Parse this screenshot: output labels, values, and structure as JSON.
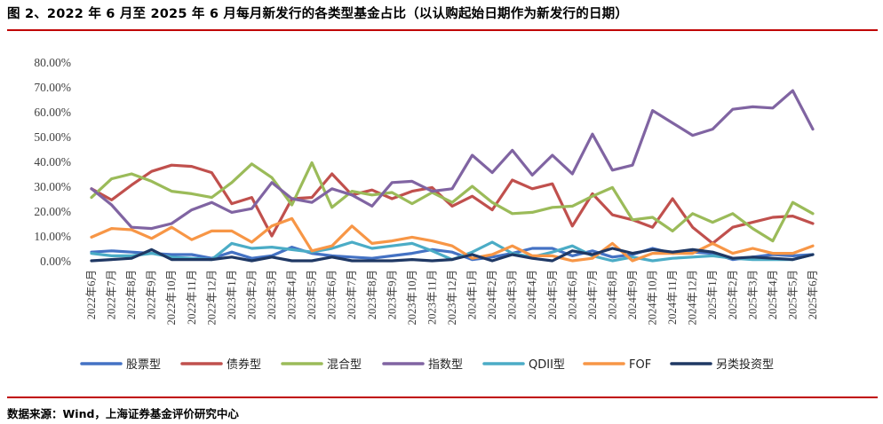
{
  "title": "图 2、2022 年 6 月至 2025 年 6 月每月新发行的各类型基金占比（以认购起始日期作为新发行的日期）",
  "source": "数据来源：Wind，上海证券基金评价研究中心",
  "colors": {
    "rule": "#c00000"
  },
  "chart_data": {
    "type": "line",
    "title": "2022 年 6 月至 2025 年 6 月每月新发行的各类型基金占比（以认购起始日期作为新发行的日期）",
    "ylim": [
      0,
      80
    ],
    "ytick_values": [
      0,
      10,
      20,
      30,
      40,
      50,
      60,
      70,
      80
    ],
    "ytick_labels": [
      "0.00%",
      "10.00%",
      "20.00%",
      "30.00%",
      "40.00%",
      "50.00%",
      "60.00%",
      "70.00%",
      "80.00%"
    ],
    "grid": false,
    "legend_position": "bottom",
    "categories": [
      "2022年6月",
      "2022年7月",
      "2022年8月",
      "2022年9月",
      "2022年10月",
      "2022年11月",
      "2022年12月",
      "2023年1月",
      "2023年2月",
      "2023年3月",
      "2023年4月",
      "2023年5月",
      "2023年6月",
      "2023年7月",
      "2023年8月",
      "2023年9月",
      "2023年10月",
      "2023年11月",
      "2023年12月",
      "2024年1月",
      "2024年2月",
      "2024年3月",
      "2024年4月",
      "2024年5月",
      "2024年6月",
      "2024年7月",
      "2024年8月",
      "2024年9月",
      "2024年10月",
      "2024年11月",
      "2024年12月",
      "2025年1月",
      "2025年2月",
      "2025年3月",
      "2025年4月",
      "2025年5月",
      "2025年6月"
    ],
    "series": [
      {
        "name": "股票型",
        "color": "#4472c4",
        "values": [
          3.5,
          4,
          3.5,
          3,
          2.5,
          2.5,
          1,
          3.5,
          1,
          2,
          5.5,
          3,
          2,
          1.5,
          1,
          2,
          3,
          4.5,
          3.5,
          0.5,
          1.5,
          3,
          5,
          5,
          2,
          4,
          1.5,
          2.5,
          5,
          3,
          3.5,
          3,
          0.5,
          1.5,
          2.5,
          2,
          2.5
        ]
      },
      {
        "name": "债券型",
        "color": "#c0504d",
        "values": [
          29,
          24.5,
          30.5,
          36,
          38.5,
          38,
          35.5,
          23,
          25.5,
          10,
          25,
          25.5,
          35,
          26.5,
          28.5,
          25,
          28,
          29.5,
          22,
          26,
          20.5,
          32.5,
          29,
          31,
          14,
          27,
          18.5,
          16.5,
          13.5,
          25,
          13.5,
          7,
          13.5,
          15.5,
          17.5,
          18,
          15
        ]
      },
      {
        "name": "混合型",
        "color": "#9bbb59",
        "values": [
          25.5,
          33,
          35,
          32,
          28,
          27,
          25.5,
          31.5,
          39,
          33.5,
          22.5,
          39.5,
          21.5,
          28,
          26.5,
          27.5,
          23,
          27.5,
          23.5,
          30,
          23.5,
          19,
          19.5,
          21.5,
          22,
          26,
          29.5,
          16.5,
          17.5,
          12,
          19,
          15.5,
          19,
          13,
          8,
          23.5,
          19
        ]
      },
      {
        "name": "指数型",
        "color": "#8064a2",
        "values": [
          29,
          22.5,
          13.5,
          13,
          15,
          20.5,
          23.5,
          19.5,
          21,
          31.5,
          25,
          23.5,
          29,
          26.5,
          22,
          31.5,
          32,
          28,
          29,
          42.5,
          35.5,
          44.5,
          34.5,
          42.5,
          35,
          51,
          36.5,
          38.5,
          60.5,
          55.5,
          50.5,
          53,
          61,
          62,
          61.5,
          68.5,
          53
        ]
      },
      {
        "name": "QDII型",
        "color": "#4bacc6",
        "values": [
          3,
          2,
          2,
          3,
          1.5,
          1,
          0.5,
          7,
          5,
          5.5,
          4.5,
          3.5,
          5,
          7.5,
          5,
          6,
          7,
          4,
          0.5,
          3.5,
          7.5,
          3,
          1.5,
          3.5,
          6,
          2,
          0,
          1.5,
          0,
          1,
          1.5,
          2,
          1,
          0.5,
          0.5,
          0.5,
          2.5
        ]
      },
      {
        "name": "FOF",
        "color": "#f79646",
        "values": [
          9.5,
          13,
          12.5,
          9,
          13.5,
          8.5,
          12,
          12,
          7.5,
          14,
          17,
          4,
          6,
          14,
          7,
          8,
          9.5,
          8,
          6,
          1,
          2.5,
          6,
          2,
          2,
          0,
          1,
          7,
          0,
          3,
          3,
          3,
          7,
          3,
          5,
          3,
          3,
          6
        ]
      },
      {
        "name": "另类投资型",
        "color": "#1f3864",
        "values": [
          0,
          0.5,
          1,
          4.5,
          0.5,
          0.5,
          0.5,
          1.5,
          0,
          1.5,
          0,
          0,
          1.5,
          0,
          0,
          0,
          0.5,
          0,
          0.5,
          2.5,
          0,
          2.5,
          1,
          0,
          4,
          2.5,
          5,
          3,
          4.5,
          3.5,
          4.5,
          3.5,
          1,
          1.5,
          1,
          0.5,
          2.5
        ]
      }
    ]
  }
}
